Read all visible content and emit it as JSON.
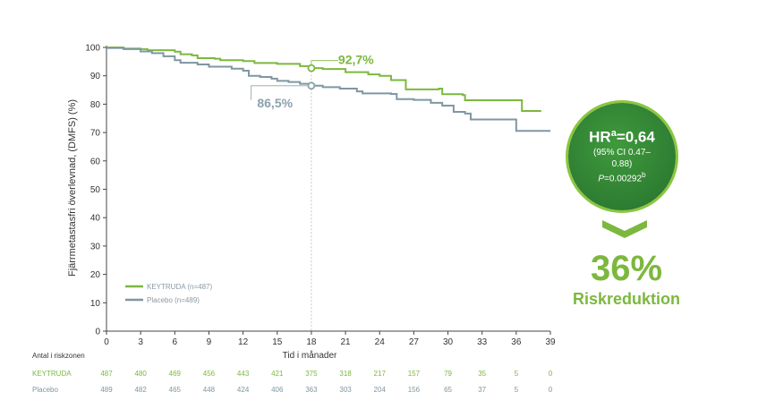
{
  "chart_data": {
    "type": "line",
    "ylabel": "Fjärrmetastasfri överlevnad, (DMFS) (%)",
    "xlabel": "Tid i månader",
    "xlim": [
      0,
      39
    ],
    "ylim": [
      0,
      100
    ],
    "xticks": [
      0,
      3,
      6,
      9,
      12,
      15,
      18,
      21,
      24,
      27,
      30,
      33,
      36,
      39
    ],
    "yticks": [
      0,
      10,
      20,
      30,
      40,
      50,
      60,
      70,
      80,
      90,
      100
    ],
    "grid": false,
    "legend_position": "bottom-left",
    "series": [
      {
        "name": "KEYTRUDA (n=487)",
        "color": "#7cb83e",
        "points": [
          [
            0,
            100
          ],
          [
            1.5,
            99.6
          ],
          [
            3,
            99.4
          ],
          [
            3.6,
            99
          ],
          [
            6,
            98.5
          ],
          [
            6.5,
            97.6
          ],
          [
            7.5,
            97.2
          ],
          [
            8,
            96.2
          ],
          [
            9.5,
            96.0
          ],
          [
            10,
            95.5
          ],
          [
            12,
            95.2
          ],
          [
            13,
            94.5
          ],
          [
            15,
            94.2
          ],
          [
            17,
            93.4
          ],
          [
            18,
            92.7
          ],
          [
            19,
            92.4
          ],
          [
            21,
            91.3
          ],
          [
            23,
            90.5
          ],
          [
            24,
            90.0
          ],
          [
            25,
            88.5
          ],
          [
            26.3,
            85.2
          ],
          [
            29.2,
            85.5
          ],
          [
            29.5,
            83.5
          ],
          [
            31.3,
            83.2
          ],
          [
            31.5,
            81.4
          ],
          [
            36.5,
            81.4
          ],
          [
            36.5,
            77.6
          ],
          [
            38.2,
            77.6
          ]
        ]
      },
      {
        "name": "Placebo (n=489)",
        "color": "#7f97a3",
        "points": [
          [
            0,
            99.8
          ],
          [
            1.5,
            99.4
          ],
          [
            3,
            98.6
          ],
          [
            4,
            98.0
          ],
          [
            5,
            96.9
          ],
          [
            6,
            95.5
          ],
          [
            6.5,
            94.6
          ],
          [
            8,
            94.0
          ],
          [
            9,
            93.2
          ],
          [
            11,
            92.5
          ],
          [
            12,
            91.8
          ],
          [
            12.5,
            90.0
          ],
          [
            13.5,
            89.6
          ],
          [
            14.5,
            89.0
          ],
          [
            15,
            88.2
          ],
          [
            16,
            87.8
          ],
          [
            17,
            87.2
          ],
          [
            18,
            86.5
          ],
          [
            19,
            86.0
          ],
          [
            20.5,
            85.5
          ],
          [
            22,
            84.5
          ],
          [
            22.5,
            83.8
          ],
          [
            25,
            83.6
          ],
          [
            25.5,
            81.8
          ],
          [
            27,
            81.5
          ],
          [
            28.5,
            80.5
          ],
          [
            29.5,
            79.5
          ],
          [
            30.5,
            77.3
          ],
          [
            31.5,
            76.7
          ],
          [
            32,
            74.6
          ],
          [
            36,
            74.6
          ],
          [
            36,
            70.6
          ],
          [
            39,
            70.6
          ]
        ]
      }
    ],
    "annotations": [
      {
        "label": "92,7%",
        "x": 18,
        "y": 92.7,
        "series": "KEYTRUDA (n=487)"
      },
      {
        "label": "86,5%",
        "x": 18,
        "y": 86.5,
        "series": "Placebo (n=489)"
      }
    ],
    "reference_line_x": 18,
    "risk_table": {
      "title": "Antal i riskzonen",
      "rows": [
        {
          "name": "KEYTRUDA",
          "values": [
            "487",
            "480",
            "469",
            "456",
            "443",
            "421",
            "375",
            "318",
            "217",
            "157",
            "79",
            "35",
            "5",
            "0"
          ]
        },
        {
          "name": "Placebo",
          "values": [
            "489",
            "482",
            "465",
            "448",
            "424",
            "406",
            "363",
            "303",
            "204",
            "156",
            "65",
            "37",
            "5",
            "0"
          ]
        }
      ]
    }
  },
  "hr_badge": {
    "hr_prefix": "HR",
    "hr_sup": "a",
    "hr_value": "=0,64",
    "ci": "(95% CI 0.47–0.88)",
    "p_label": "P",
    "p_value": "=0.00292",
    "p_sup": "b"
  },
  "risk_reduction": {
    "value": "36%",
    "label": "Riskreduktion"
  }
}
